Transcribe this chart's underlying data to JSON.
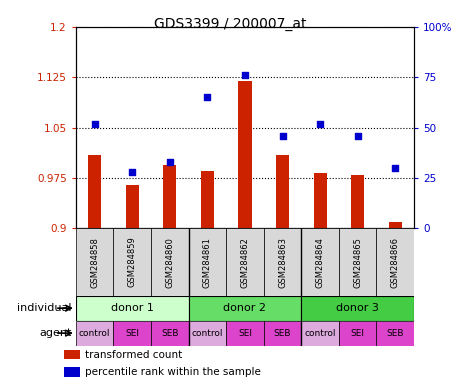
{
  "title": "GDS3399 / 200007_at",
  "samples": [
    "GSM284858",
    "GSM284859",
    "GSM284860",
    "GSM284861",
    "GSM284862",
    "GSM284863",
    "GSM284864",
    "GSM284865",
    "GSM284866"
  ],
  "transformed_count": [
    1.01,
    0.965,
    0.995,
    0.985,
    1.12,
    1.01,
    0.982,
    0.98,
    0.91
  ],
  "percentile_rank": [
    52,
    28,
    33,
    65,
    76,
    46,
    52,
    46,
    30
  ],
  "ylim_left": [
    0.9,
    1.2
  ],
  "ylim_right": [
    0,
    100
  ],
  "yticks_left": [
    0.9,
    0.975,
    1.05,
    1.125,
    1.2
  ],
  "yticks_right": [
    0,
    25,
    50,
    75,
    100
  ],
  "ytick_labels_left": [
    "0.9",
    "0.975",
    "1.05",
    "1.125",
    "1.2"
  ],
  "ytick_labels_right": [
    "0",
    "25",
    "50",
    "75",
    "100%"
  ],
  "bar_color": "#cc2200",
  "dot_color": "#0000cc",
  "bar_bottom": 0.9,
  "individuals": [
    {
      "label": "donor 1",
      "start": 0,
      "end": 3,
      "color": "#ccffcc"
    },
    {
      "label": "donor 2",
      "start": 3,
      "end": 6,
      "color": "#66dd66"
    },
    {
      "label": "donor 3",
      "start": 6,
      "end": 9,
      "color": "#44cc44"
    }
  ],
  "agents": [
    "control",
    "SEI",
    "SEB",
    "control",
    "SEI",
    "SEB",
    "control",
    "SEI",
    "SEB"
  ],
  "agent_color_control": "#ddaadd",
  "agent_color_sei_seb": "#dd44cc",
  "legend_bar_label": "transformed count",
  "legend_dot_label": "percentile rank within the sample",
  "left_tick_color": "#cc2200",
  "right_tick_color": "#0000cc",
  "bg_color": "#d8d8d8",
  "plot_bg": "#ffffff"
}
